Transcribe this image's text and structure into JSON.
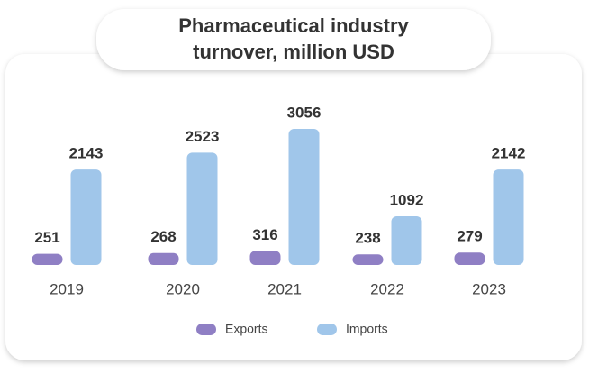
{
  "chart_data": {
    "type": "bar",
    "title_lines": [
      "Pharmaceutical industry",
      "turnover, million USD"
    ],
    "categories": [
      "2019",
      "2020",
      "2021",
      "2022",
      "2023"
    ],
    "series": [
      {
        "name": "Exports",
        "color": "#8f7fc4",
        "values": [
          251,
          268,
          316,
          238,
          279
        ]
      },
      {
        "name": "Imports",
        "color": "#a0c6ea",
        "values": [
          2143,
          2523,
          3056,
          1092,
          2142
        ]
      }
    ]
  }
}
